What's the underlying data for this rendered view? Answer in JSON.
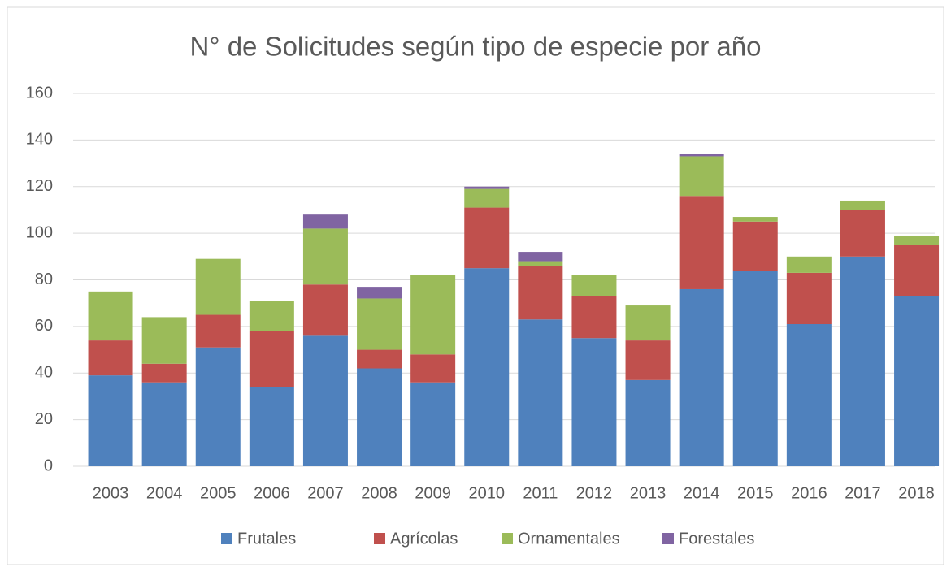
{
  "chart_data": {
    "type": "stacked_bar",
    "title": "N°  de Solicitudes según tipo de especie por año",
    "categories": [
      "2003",
      "2004",
      "2005",
      "2006",
      "2007",
      "2008",
      "2009",
      "2010",
      "2011",
      "2012",
      "2013",
      "2014",
      "2015",
      "2016",
      "2017",
      "2018"
    ],
    "series": [
      {
        "name": "Frutales",
        "color": "#4f81bd",
        "values": [
          39,
          36,
          51,
          34,
          56,
          42,
          36,
          85,
          63,
          55,
          37,
          76,
          84,
          61,
          90,
          73
        ]
      },
      {
        "name": "Agrícolas",
        "color": "#c0504d",
        "values": [
          15,
          8,
          14,
          24,
          22,
          8,
          12,
          26,
          23,
          18,
          17,
          40,
          21,
          22,
          20,
          22
        ]
      },
      {
        "name": "Ornamentales",
        "color": "#9bbb59",
        "values": [
          21,
          20,
          24,
          13,
          24,
          22,
          34,
          8,
          2,
          9,
          15,
          17,
          2,
          7,
          4,
          4
        ]
      },
      {
        "name": "Forestales",
        "color": "#8064a2",
        "values": [
          0,
          0,
          0,
          0,
          6,
          5,
          0,
          1,
          4,
          0,
          0,
          1,
          0,
          0,
          0,
          0
        ]
      }
    ],
    "ylim": [
      0,
      160
    ],
    "yticks": [
      0,
      20,
      40,
      60,
      80,
      100,
      120,
      140,
      160
    ],
    "grid": true,
    "legend": "bottom"
  }
}
